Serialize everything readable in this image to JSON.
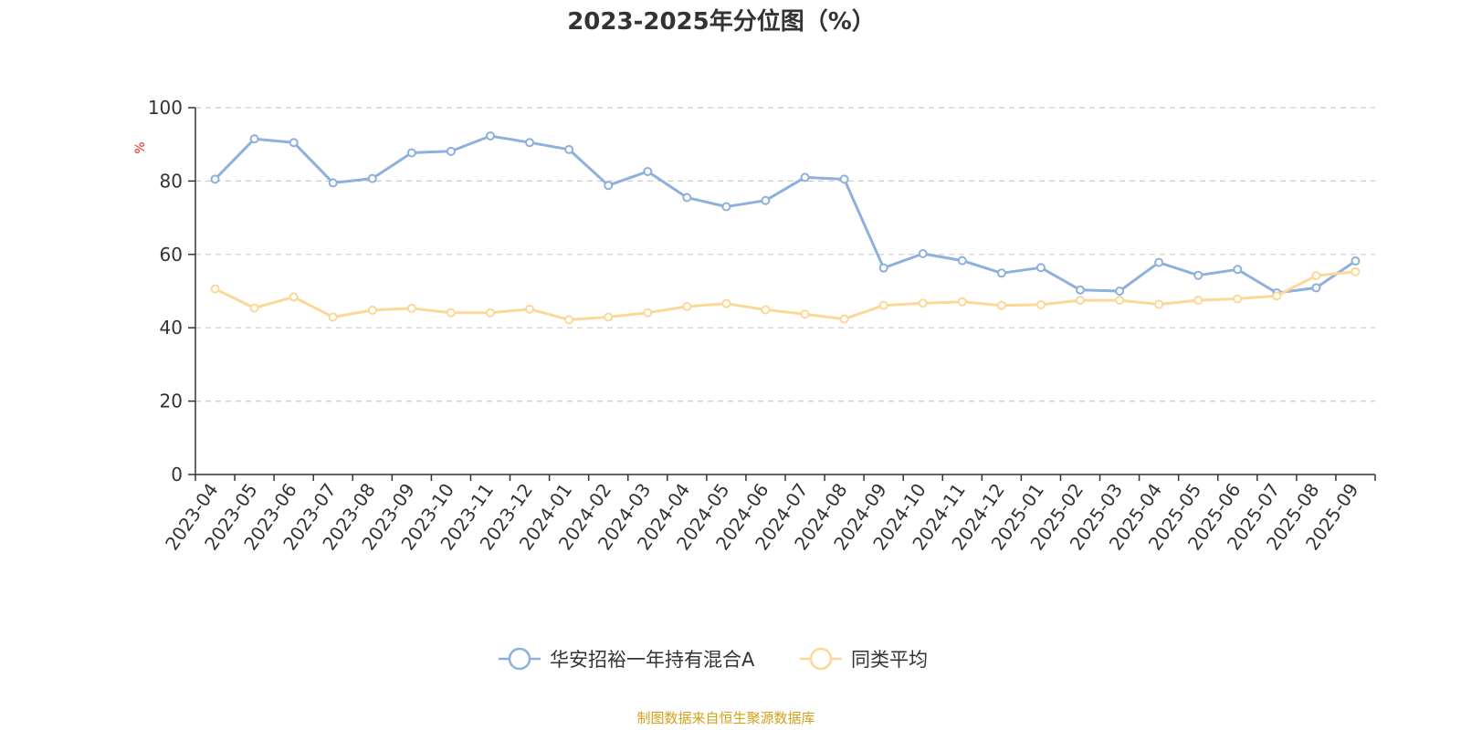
{
  "chart_data": {
    "type": "line",
    "title": "2023-2025年分位图（%）",
    "ylabel": "%",
    "ylim": [
      0,
      100
    ],
    "yticks": [
      "0",
      "20",
      "40",
      "60",
      "80",
      "100"
    ],
    "grid": true,
    "legend_position": "bottom-center",
    "categories": [
      "2023-04",
      "2023-05",
      "2023-06",
      "2023-07",
      "2023-08",
      "2023-09",
      "2023-10",
      "2023-11",
      "2023-12",
      "2024-01",
      "2024-02",
      "2024-03",
      "2024-04",
      "2024-05",
      "2024-06",
      "2024-07",
      "2024-08",
      "2024-09",
      "2024-10",
      "2024-11",
      "2024-12",
      "2025-01",
      "2025-02",
      "2025-03",
      "2025-04",
      "2025-05",
      "2025-06",
      "2025-07",
      "2025-08",
      "2025-09"
    ],
    "series": [
      {
        "name": "华安招裕一年持有混合A",
        "color": "#8eb0dc",
        "values": [
          80.5,
          91.5,
          90.5,
          79.5,
          80.7,
          87.7,
          88.1,
          92.3,
          90.5,
          88.6,
          78.8,
          82.6,
          75.5,
          73.0,
          74.7,
          81.0,
          80.5,
          56.3,
          60.2,
          58.3,
          54.9,
          56.4,
          50.3,
          50.0,
          57.8,
          54.3,
          55.9,
          49.5,
          50.9,
          58.2
        ]
      },
      {
        "name": "同类平均",
        "color": "#fcd898",
        "values": [
          50.6,
          45.4,
          48.4,
          42.9,
          44.8,
          45.3,
          44.1,
          44.1,
          45.1,
          42.2,
          42.9,
          44.1,
          45.8,
          46.6,
          44.9,
          43.7,
          42.4,
          46.1,
          46.7,
          47.1,
          46.1,
          46.3,
          47.5,
          47.5,
          46.4,
          47.5,
          47.9,
          48.7,
          54.2,
          55.3
        ]
      }
    ]
  },
  "source_text": "制图数据来自恒生聚源数据库",
  "colors": {
    "axis": "#333333",
    "grid": "#cccccc",
    "ylabel": "#ee2222",
    "source": "#d4a017"
  }
}
